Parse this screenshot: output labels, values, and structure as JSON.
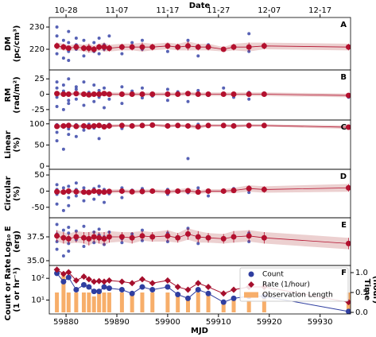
{
  "chart_data": {
    "type": "panels",
    "x2label": "Date",
    "xlabel": "MJD",
    "xlim": [
      59876.7,
      59936
    ],
    "xticks": [
      59880,
      59890,
      59900,
      59910,
      59920,
      59930
    ],
    "x2ticks": [
      {
        "value": 59880,
        "label": "10-28"
      },
      {
        "value": 59890,
        "label": "11-07"
      },
      {
        "value": 59900,
        "label": "11-17"
      },
      {
        "value": 59910,
        "label": "11-27"
      },
      {
        "value": 59920,
        "label": "12-07"
      },
      {
        "value": 59930,
        "label": "12-17"
      }
    ],
    "point_color": "#3a47a8",
    "mean_color": "#b3102e",
    "band_color": "#ecd0d0",
    "x": [
      59878.2,
      59878.2,
      59878.2,
      59878.2,
      59879.5,
      59879.5,
      59879.5,
      59880.5,
      59880.5,
      59880.5,
      59880.5,
      59882,
      59882,
      59882,
      59883.5,
      59883.5,
      59884.5,
      59885.5,
      59885.5,
      59886.5,
      59886.5,
      59887.5,
      59887.5,
      59888.5,
      59891,
      59891,
      59893,
      59895,
      59895,
      59897,
      59900,
      59900,
      59902,
      59904,
      59906,
      59908,
      59911,
      59913,
      59916,
      59916,
      59919,
      59935.6
    ],
    "sessions": [
      59878.2,
      59879.5,
      59880.5,
      59882,
      59883.5,
      59884.5,
      59885.5,
      59886.5,
      59887.5,
      59888.5,
      59891,
      59893,
      59895,
      59897,
      59900,
      59902,
      59904,
      59906,
      59908,
      59911,
      59913,
      59916,
      59919,
      59935.6
    ],
    "panels": [
      {
        "type": "scatter",
        "label": "A",
        "ylabel": [
          "DM",
          "(pc/cm³)"
        ],
        "ylim": [
          210.7,
          234.3
        ],
        "yticks": [
          220,
          230
        ],
        "values": [
          226,
          218,
          230,
          222,
          224,
          216,
          221,
          228,
          219,
          223,
          215,
          225,
          220,
          222,
          224,
          217,
          221,
          223,
          219,
          225,
          218,
          222,
          220,
          226,
          221,
          218,
          223,
          220,
          224,
          221,
          219,
          222,
          221,
          224,
          217,
          222,
          220,
          221,
          227,
          219,
          221,
          221
        ],
        "means": [
          221.5,
          221,
          220.5,
          221,
          220.5,
          220.5,
          220,
          221,
          221,
          220.5,
          221,
          221,
          221,
          221,
          221.5,
          221,
          221.5,
          221,
          221,
          220,
          221,
          221,
          221.5,
          221
        ],
        "errors": [
          1.5,
          1.5,
          1.2,
          1.5,
          1.5,
          2,
          1.5,
          1.5,
          2,
          1.5,
          1.5,
          1.5,
          2,
          1.5,
          1.5,
          1.5,
          2,
          1.5,
          1.5,
          1,
          1.5,
          2,
          1.5,
          1.5
        ]
      },
      {
        "type": "scatter",
        "label": "B",
        "ylabel": [
          "RM",
          "(rad/m²)"
        ],
        "ylim": [
          -42,
          39.5
        ],
        "yticks": [
          -25,
          0,
          25
        ],
        "values": [
          10,
          -20,
          20,
          -5,
          15,
          -25,
          5,
          -10,
          25,
          0,
          -15,
          8,
          -8,
          12,
          -18,
          20,
          3,
          -12,
          15,
          -5,
          6,
          -22,
          10,
          -8,
          12,
          -15,
          5,
          -6,
          10,
          -3,
          8,
          -10,
          4,
          -12,
          6,
          -2,
          10,
          -5,
          3,
          -8,
          2,
          -5
        ],
        "means": [
          1,
          0,
          0,
          1,
          0,
          -1,
          0,
          0,
          1,
          0,
          0,
          0,
          0,
          0,
          0,
          0,
          1,
          0,
          0,
          0,
          0,
          0,
          0,
          -2
        ],
        "errors": [
          3,
          3,
          2,
          3,
          3,
          4,
          3,
          3,
          4,
          3,
          3,
          3,
          3,
          3,
          3,
          3,
          3,
          3,
          3,
          3,
          3,
          3,
          3,
          3
        ]
      },
      {
        "type": "scatter",
        "label": "C",
        "ylabel": [
          "Linear",
          "(%)"
        ],
        "ylim": [
          -7.4,
          109
        ],
        "yticks": [
          0,
          50,
          100
        ],
        "values": [
          95,
          60,
          98,
          80,
          97,
          40,
          92,
          99,
          75,
          96,
          88,
          70,
          98,
          94,
          85,
          97,
          99,
          90,
          95,
          65,
          98,
          96,
          92,
          99,
          97,
          89,
          98,
          95,
          99,
          96,
          94,
          98,
          97,
          18,
          99,
          96,
          97,
          98,
          95,
          93,
          98,
          92
        ],
        "means": [
          94,
          95,
          96,
          94,
          95,
          93,
          95,
          96,
          93,
          95,
          96,
          95,
          96,
          97,
          95,
          96,
          95,
          93,
          96,
          96,
          95,
          96,
          96,
          92
        ],
        "errors": [
          4,
          4,
          3,
          4,
          4,
          5,
          4,
          4,
          5,
          4,
          3,
          4,
          3,
          3,
          4,
          3,
          4,
          5,
          3,
          3,
          4,
          3,
          3,
          4
        ]
      },
      {
        "type": "scatter",
        "label": "D",
        "ylabel": [
          "Circular",
          "(%)"
        ],
        "ylim": [
          -82.5,
          67.5
        ],
        "yticks": [
          -50,
          0,
          50
        ],
        "values": [
          5,
          -40,
          20,
          -10,
          0,
          -60,
          10,
          -20,
          15,
          -5,
          -45,
          25,
          -15,
          5,
          -30,
          10,
          0,
          -25,
          8,
          -10,
          15,
          -35,
          5,
          -8,
          10,
          -20,
          3,
          -5,
          8,
          -2,
          5,
          -10,
          0,
          -5,
          10,
          -15,
          3,
          8,
          12,
          -4,
          2,
          10
        ],
        "means": [
          -2,
          -3,
          0,
          -2,
          -3,
          -4,
          0,
          -2,
          -3,
          -1,
          0,
          -2,
          -1,
          0,
          -2,
          0,
          1,
          -3,
          0,
          0,
          2,
          8,
          5,
          10
        ],
        "errors": [
          6,
          6,
          5,
          6,
          6,
          8,
          6,
          6,
          8,
          6,
          6,
          6,
          6,
          6,
          6,
          6,
          8,
          6,
          6,
          6,
          8,
          10,
          10,
          12
        ]
      },
      {
        "type": "scatter",
        "label": "E",
        "ylabel": [
          "Log₁₀ E",
          "(erg)"
        ],
        "ylim": [
          34.5,
          39.5
        ],
        "yticks": [
          {
            "value": 35,
            "label": "35.0"
          },
          37.5
        ],
        "values": [
          37.8,
          36.2,
          38.8,
          37.0,
          38.2,
          35.5,
          37.4,
          38.5,
          36.8,
          37.9,
          36.0,
          38.1,
          37.2,
          37.6,
          38.6,
          36.5,
          37.3,
          38.0,
          36.9,
          37.7,
          38.3,
          36.7,
          37.5,
          38.0,
          37.3,
          36.9,
          37.8,
          37.1,
          38.2,
          37.6,
          37.0,
          37.9,
          37.4,
          38.4,
          36.8,
          37.5,
          37.2,
          37.6,
          37.9,
          37.0,
          37.3,
          36.7
        ],
        "means": [
          37.6,
          37.4,
          37.3,
          37.5,
          37.4,
          37.3,
          37.5,
          37.4,
          37.3,
          37.5,
          37.5,
          37.4,
          37.6,
          37.5,
          37.6,
          37.4,
          37.8,
          37.5,
          37.4,
          37.3,
          37.5,
          37.6,
          37.4,
          36.8
        ],
        "errors": [
          0.6,
          0.6,
          0.5,
          0.6,
          0.6,
          0.7,
          0.6,
          0.6,
          0.7,
          0.6,
          0.5,
          0.6,
          0.5,
          0.5,
          0.6,
          0.5,
          0.6,
          0.6,
          0.5,
          0.5,
          0.6,
          0.6,
          0.6,
          0.6
        ]
      },
      {
        "type": "combo",
        "label": "F",
        "ylabel": [
          "Count or Rate",
          "(1 or hr⁻¹)"
        ],
        "y2label": [
          "Time",
          "(hour)"
        ],
        "log": true,
        "ylim": [
          2.3,
          390
        ],
        "yticks": [
          {
            "value": 10,
            "label": "10¹"
          },
          {
            "value": 100,
            "label": "10²"
          }
        ],
        "y2lim": [
          -0.04,
          1.18
        ],
        "y2ticks": [
          {
            "value": 0,
            "label": "0.0"
          },
          {
            "value": 0.5,
            "label": "0.5"
          },
          {
            "value": 1,
            "label": "1.0"
          }
        ],
        "legend": "upper right",
        "series": [
          {
            "name": "Count",
            "color": "#2f3ea0",
            "marker": "circle",
            "values": [
              170,
              70,
              110,
              30,
              50,
              40,
              25,
              25,
              40,
              35,
              30,
              20,
              40,
              30,
              40,
              18,
              12,
              30,
              20,
              8,
              12,
              15,
              15,
              3
            ]
          },
          {
            "name": "Rate (1/hour)",
            "color": "#a50f2d",
            "marker": "diamond",
            "values": [
              250,
              160,
              190,
              80,
              120,
              90,
              70,
              75,
              70,
              80,
              70,
              60,
              90,
              60,
              80,
              40,
              30,
              60,
              40,
              20,
              30,
              40,
              40,
              8
            ]
          },
          {
            "name": "Observation Length",
            "color": "#f7ae6a",
            "marker": "bar",
            "axis": "y2",
            "values": [
              0.5,
              1.0,
              0.5,
              0.5,
              0.5,
              0.5,
              0.4,
              0.5,
              0.5,
              0.5,
              0.5,
              0.5,
              0.5,
              0.5,
              0.5,
              0.5,
              0.3,
              0.5,
              0.5,
              0.3,
              0.3,
              0.3,
              0.5,
              0.5
            ]
          }
        ]
      }
    ]
  }
}
